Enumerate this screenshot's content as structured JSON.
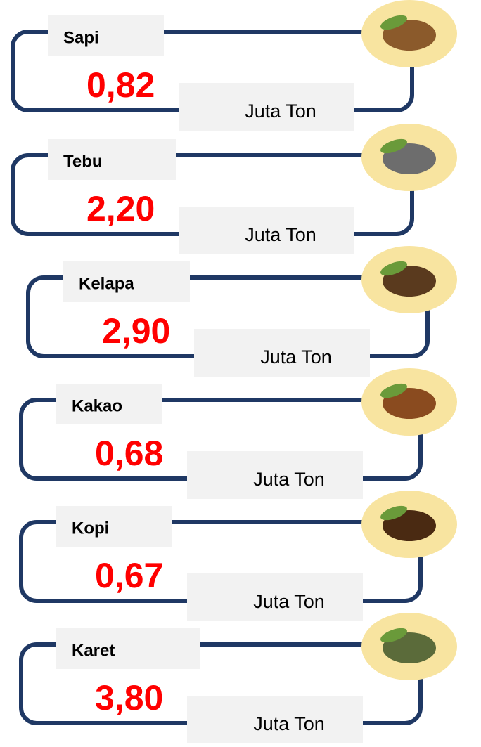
{
  "items": [
    {
      "name": "Sapi",
      "value": "0,82",
      "unit": "Juta Ton"
    },
    {
      "name": "Tebu",
      "value": "2,20",
      "unit": "Juta Ton"
    },
    {
      "name": "Kelapa",
      "value": "2,90",
      "unit": "Juta Ton"
    },
    {
      "name": "Kakao",
      "value": "0,68",
      "unit": "Juta Ton"
    },
    {
      "name": "Kopi",
      "value": "0,67",
      "unit": "Juta Ton"
    },
    {
      "name": "Karet",
      "value": "3,80",
      "unit": "Juta Ton"
    }
  ]
}
